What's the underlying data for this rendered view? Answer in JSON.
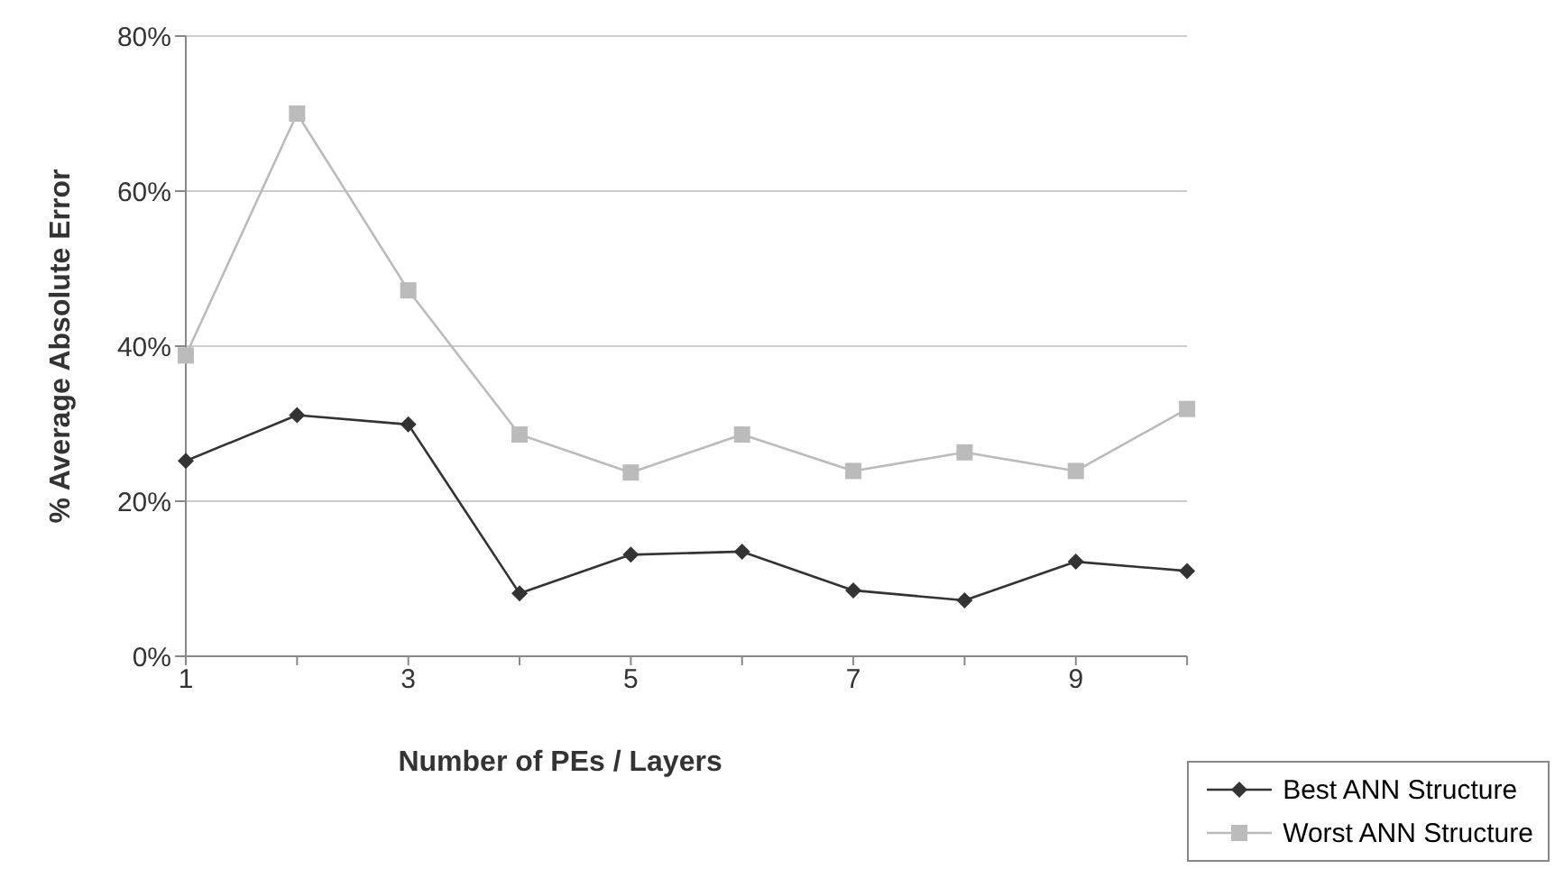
{
  "chart_data": {
    "type": "line",
    "xlabel": "Number of PEs / Layers",
    "ylabel": "% Average Absolute Error",
    "categories": [
      "1",
      null,
      "3",
      null,
      "5",
      null,
      "7",
      null,
      "9",
      null
    ],
    "series": [
      {
        "name": "Best ANN Structure",
        "color": "#333333",
        "marker": "diamond",
        "values": [
          25.2,
          31.1,
          29.9,
          8.1,
          13.1,
          13.5,
          8.5,
          7.2,
          12.2,
          11
        ]
      },
      {
        "name": "Worst ANN Structure",
        "color": "#bbbbbb",
        "marker": "square",
        "values": [
          38.8,
          70,
          47.2,
          28.6,
          23.7,
          28.6,
          23.9,
          26.3,
          23.9,
          31.9
        ]
      }
    ],
    "ylim": [
      0,
      80
    ],
    "yticks": [
      {
        "value": 0,
        "label": "0%"
      },
      {
        "value": 20,
        "label": "20%"
      },
      {
        "value": 40,
        "label": "40%"
      },
      {
        "value": 60,
        "label": "60%"
      },
      {
        "value": 80,
        "label": "80%"
      }
    ],
    "grid": "y",
    "legend": "bottom right"
  }
}
